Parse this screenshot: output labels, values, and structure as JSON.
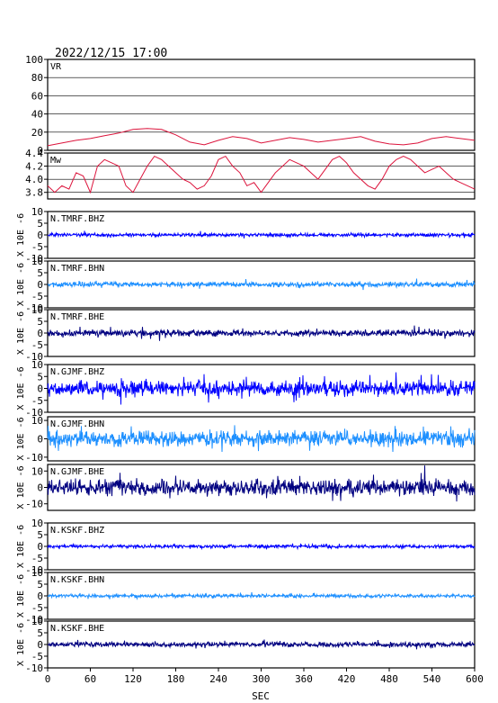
{
  "header": {
    "datetime": "2022/12/15 17:00"
  },
  "x_axis": {
    "label": "SEC",
    "ticks": [
      "0",
      "60",
      "120",
      "180",
      "240",
      "300",
      "360",
      "420",
      "480",
      "540",
      "600"
    ]
  },
  "chart_data": [
    {
      "type": "line",
      "label": "VR",
      "color": "#dc143c",
      "ylim": [
        0,
        100
      ],
      "y_ticks": [
        "0",
        "20",
        "40",
        "60",
        "80",
        "100"
      ],
      "grid": true,
      "x": [
        0,
        20,
        40,
        60,
        80,
        100,
        120,
        140,
        160,
        180,
        200,
        220,
        240,
        260,
        280,
        300,
        320,
        340,
        360,
        380,
        400,
        420,
        440,
        460,
        480,
        500,
        520,
        540,
        560,
        580,
        600
      ],
      "values": [
        5,
        8,
        11,
        13,
        16,
        19,
        23,
        24,
        23,
        17,
        9,
        6,
        11,
        15,
        13,
        8,
        11,
        14,
        12,
        9,
        11,
        13,
        15,
        10,
        7,
        6,
        8,
        13,
        15,
        13,
        11
      ]
    },
    {
      "type": "line",
      "label": "Mw",
      "color": "#dc143c",
      "ylim": [
        3.7,
        4.4
      ],
      "y_ticks": [
        "3.8",
        "4.0",
        "4.2",
        "4.4"
      ],
      "grid": true,
      "x": [
        0,
        10,
        20,
        30,
        40,
        50,
        60,
        70,
        80,
        90,
        100,
        110,
        120,
        130,
        140,
        150,
        160,
        170,
        180,
        190,
        200,
        210,
        220,
        230,
        240,
        250,
        260,
        270,
        280,
        290,
        300,
        310,
        320,
        330,
        340,
        350,
        360,
        370,
        380,
        390,
        400,
        410,
        420,
        430,
        440,
        450,
        460,
        470,
        480,
        490,
        500,
        510,
        520,
        530,
        540,
        550,
        560,
        570,
        580,
        590,
        600
      ],
      "values": [
        3.9,
        3.8,
        3.9,
        3.85,
        4.1,
        4.05,
        3.8,
        4.2,
        4.3,
        4.25,
        4.2,
        3.9,
        3.8,
        4.0,
        4.2,
        4.35,
        4.3,
        4.2,
        4.1,
        4.0,
        3.95,
        3.85,
        3.9,
        4.05,
        4.3,
        4.35,
        4.2,
        4.1,
        3.9,
        3.95,
        3.8,
        3.95,
        4.1,
        4.2,
        4.3,
        4.25,
        4.2,
        4.1,
        4.0,
        4.15,
        4.3,
        4.35,
        4.25,
        4.1,
        4.0,
        3.9,
        3.85,
        4.0,
        4.2,
        4.3,
        4.35,
        4.3,
        4.2,
        4.1,
        4.15,
        4.2,
        4.1,
        4.0,
        3.95,
        3.9,
        3.85
      ]
    },
    {
      "type": "line",
      "label": "N.TMRF.BHZ",
      "ylabel": "X 10E -6",
      "color": "#0000ff",
      "ylim": [
        -10,
        10
      ],
      "y_ticks": [
        "-10",
        "-5",
        "0",
        "5",
        "10"
      ],
      "amplitude_peak": 2
    },
    {
      "type": "line",
      "label": "N.TMRF.BHN",
      "ylabel": "X 10E -6",
      "color": "#1e90ff",
      "ylim": [
        -10,
        10
      ],
      "y_ticks": [
        "-10",
        "-5",
        "0",
        "5",
        "10"
      ],
      "amplitude_peak": 3
    },
    {
      "type": "line",
      "label": "N.TMRF.BHE",
      "ylabel": "X 10E -6",
      "color": "#000080",
      "ylim": [
        -10,
        10
      ],
      "y_ticks": [
        "-10",
        "-5",
        "0",
        "5",
        "10"
      ],
      "amplitude_peak": 4
    },
    {
      "type": "line",
      "label": "N.GJMF.BHZ",
      "ylabel": "X 10E -6",
      "color": "#0000ff",
      "ylim": [
        -10,
        10
      ],
      "y_ticks": [
        "-10",
        "-5",
        "0",
        "5",
        "10"
      ],
      "amplitude_peak": 9
    },
    {
      "type": "line",
      "label": "N.GJMF.BHN",
      "ylabel": "X 10E -6",
      "color": "#1e90ff",
      "ylim": [
        -12,
        12
      ],
      "y_ticks": [
        "-10",
        "0",
        "10"
      ],
      "amplitude_peak": 12
    },
    {
      "type": "line",
      "label": "N.GJMF.BHE",
      "ylabel": "X 10E -6",
      "color": "#000080",
      "ylim": [
        -14,
        14
      ],
      "y_ticks": [
        "-10",
        "0",
        "10"
      ],
      "amplitude_peak": 14
    },
    {
      "type": "line",
      "label": "N.KSKF.BHZ",
      "ylabel": "X 10E -6",
      "color": "#0000ff",
      "ylim": [
        -10,
        10
      ],
      "y_ticks": [
        "-10",
        "-5",
        "0",
        "5",
        "10"
      ],
      "amplitude_peak": 2
    },
    {
      "type": "line",
      "label": "N.KSKF.BHN",
      "ylabel": "X 10E -6",
      "color": "#1e90ff",
      "ylim": [
        -10,
        10
      ],
      "y_ticks": [
        "-10",
        "-5",
        "0",
        "5",
        "10"
      ],
      "amplitude_peak": 2
    },
    {
      "type": "line",
      "label": "N.KSKF.BHE",
      "ylabel": "X 10E -6",
      "color": "#000080",
      "ylim": [
        -10,
        10
      ],
      "y_ticks": [
        "-10",
        "-5",
        "0",
        "5",
        "10"
      ],
      "amplitude_peak": 3
    }
  ]
}
